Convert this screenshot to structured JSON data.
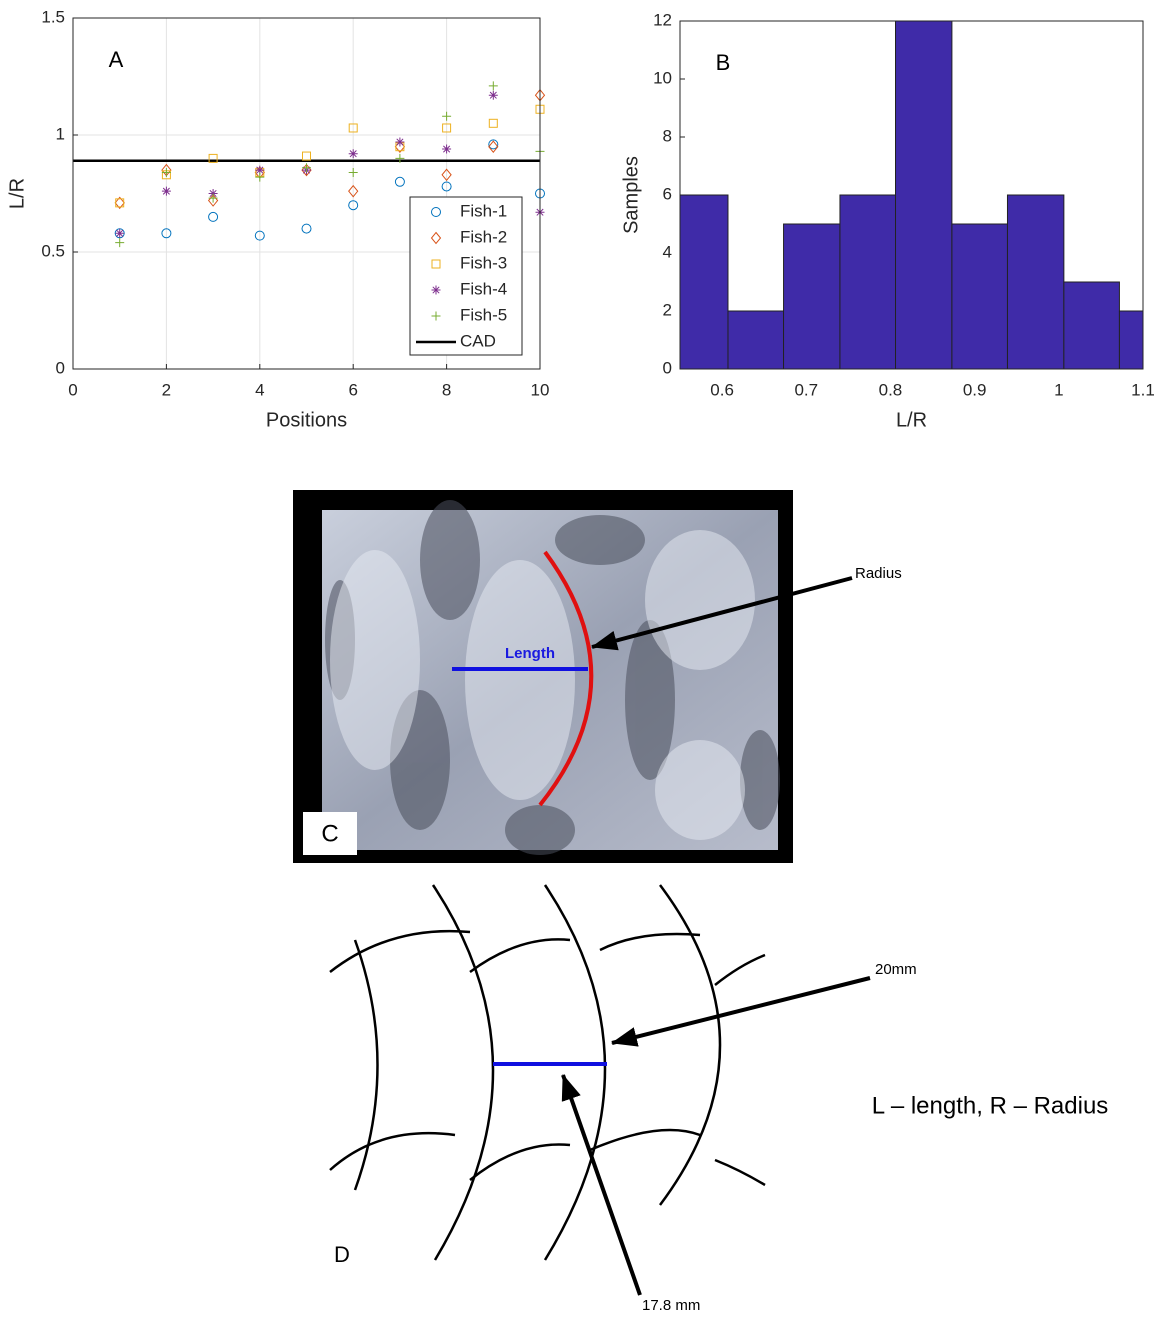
{
  "chart_data": [
    {
      "type": "scatter",
      "annotation": "A",
      "xlabel": "Positions",
      "ylabel": "L/R",
      "x": [
        1,
        2,
        3,
        4,
        5,
        6,
        7,
        8,
        9,
        10
      ],
      "series": [
        {
          "name": "Fish-1",
          "color": "#0072BD",
          "marker": "o",
          "values": [
            0.58,
            0.58,
            0.65,
            0.57,
            0.6,
            0.7,
            0.8,
            0.78,
            0.96,
            0.75
          ]
        },
        {
          "name": "Fish-2",
          "color": "#D95319",
          "marker": "d",
          "values": [
            0.71,
            0.85,
            0.72,
            0.84,
            0.85,
            0.76,
            0.95,
            0.83,
            0.95,
            1.17
          ]
        },
        {
          "name": "Fish-3",
          "color": "#EDB120",
          "marker": "s",
          "values": [
            0.71,
            0.83,
            0.9,
            0.84,
            0.91,
            1.03,
            0.95,
            1.03,
            1.05,
            1.11
          ]
        },
        {
          "name": "Fish-4",
          "color": "#7E2F8E",
          "marker": "*",
          "values": [
            0.58,
            0.76,
            0.75,
            0.85,
            0.85,
            0.92,
            0.97,
            0.94,
            1.17,
            0.67
          ]
        },
        {
          "name": "Fish-5",
          "color": "#77AC30",
          "marker": "+",
          "values": [
            0.54,
            0.84,
            0.73,
            0.82,
            0.86,
            0.84,
            0.9,
            1.08,
            1.21,
            0.93
          ]
        }
      ],
      "reference_lines": [
        {
          "name": "CAD",
          "value": 0.89,
          "color": "#000000"
        }
      ],
      "xlim": [
        0,
        10
      ],
      "xticks": [
        0,
        2,
        4,
        6,
        8,
        10
      ],
      "ylim": [
        0,
        1.5
      ],
      "yticks": [
        0,
        0.5,
        1,
        1.5
      ],
      "grid": true,
      "legend": "lower right"
    },
    {
      "type": "histogram",
      "annotation": "B",
      "xlabel": "L/R",
      "ylabel": "Samples",
      "bins": [
        0.54,
        0.607,
        0.673,
        0.74,
        0.806,
        0.873,
        0.939,
        1.006,
        1.072,
        1.139
      ],
      "values": [
        6,
        2,
        5,
        6,
        12,
        5,
        6,
        3,
        2
      ],
      "color": "#3F2BA8",
      "xlim": [
        0.55,
        1.1
      ],
      "xticks": [
        0.6,
        0.7,
        0.8,
        0.9,
        1,
        1.1
      ],
      "ylim": [
        0,
        12
      ],
      "yticks": [
        0,
        2,
        4,
        6,
        8,
        10,
        12
      ],
      "grid": false
    }
  ],
  "photo": {
    "label": "C",
    "radius": "Radius",
    "length": "Length"
  },
  "diagram": {
    "label": "D",
    "radius": "20mm",
    "length": "17.8 mm",
    "legend": "L – length, R – Radius"
  }
}
